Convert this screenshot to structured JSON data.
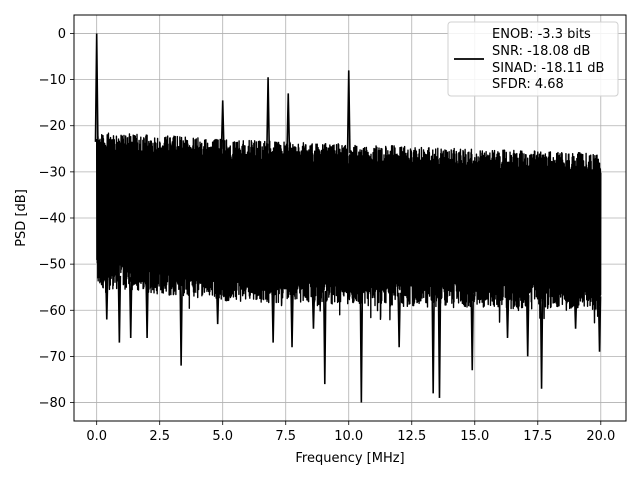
{
  "chart_data": {
    "type": "line",
    "title": "",
    "xlabel": "Frequency [MHz]",
    "ylabel": "PSD [dB]",
    "xlim": [
      -0.9,
      21.0
    ],
    "ylim": [
      -84.0,
      4.0
    ],
    "xticks": [
      0.0,
      2.5,
      5.0,
      7.5,
      10.0,
      12.5,
      15.0,
      17.5,
      20.0
    ],
    "xtick_labels": [
      "0.0",
      "2.5",
      "5.0",
      "7.5",
      "10.0",
      "12.5",
      "15.0",
      "17.5",
      "20.0"
    ],
    "yticks": [
      0,
      -10,
      -20,
      -30,
      -40,
      -50,
      -60,
      -70,
      -80
    ],
    "ytick_labels": [
      "0",
      "−10",
      "−20",
      "−30",
      "−40",
      "−50",
      "−60",
      "−70",
      "−80"
    ],
    "grid": true,
    "legend": {
      "placement": "top-right",
      "lines": [
        "ENOB: -3.3 bits",
        "SNR: -18.08 dB",
        "SINAD: -18.11 dB",
        "SFDR: 4.68"
      ]
    },
    "series": [
      {
        "color": "#000000",
        "noise_floor_upper_db": [
          {
            "x": 0.0,
            "y": -21.5
          },
          {
            "x": 2.5,
            "y": -22.0
          },
          {
            "x": 5.0,
            "y": -23.0
          },
          {
            "x": 7.5,
            "y": -23.5
          },
          {
            "x": 10.0,
            "y": -24.0
          },
          {
            "x": 12.5,
            "y": -24.5
          },
          {
            "x": 15.0,
            "y": -25.0
          },
          {
            "x": 17.5,
            "y": -25.5
          },
          {
            "x": 20.0,
            "y": -26.0
          }
        ],
        "noise_floor_lower_db": [
          {
            "x": 0.0,
            "y": -52.0
          },
          {
            "x": 5.0,
            "y": -55.0
          },
          {
            "x": 10.0,
            "y": -56.0
          },
          {
            "x": 15.0,
            "y": -56.5
          },
          {
            "x": 20.0,
            "y": -57.0
          }
        ],
        "peaks": [
          {
            "x": 0.0,
            "y": 0.0
          },
          {
            "x": 5.0,
            "y": -14.5
          },
          {
            "x": 6.8,
            "y": -9.5
          },
          {
            "x": 7.6,
            "y": -13.0
          },
          {
            "x": 10.0,
            "y": -8.0
          }
        ],
        "dips": [
          {
            "x": 0.4,
            "y": -62.0
          },
          {
            "x": 0.9,
            "y": -67.0
          },
          {
            "x": 1.35,
            "y": -66.0
          },
          {
            "x": 2.0,
            "y": -66.0
          },
          {
            "x": 3.35,
            "y": -72.0
          },
          {
            "x": 4.8,
            "y": -63.0
          },
          {
            "x": 7.0,
            "y": -67.0
          },
          {
            "x": 7.75,
            "y": -68.0
          },
          {
            "x": 8.6,
            "y": -64.0
          },
          {
            "x": 9.05,
            "y": -76.0
          },
          {
            "x": 10.5,
            "y": -80.0
          },
          {
            "x": 12.0,
            "y": -68.0
          },
          {
            "x": 13.35,
            "y": -78.0
          },
          {
            "x": 13.6,
            "y": -79.0
          },
          {
            "x": 14.9,
            "y": -73.0
          },
          {
            "x": 16.3,
            "y": -66.0
          },
          {
            "x": 17.1,
            "y": -70.0
          },
          {
            "x": 17.65,
            "y": -77.0
          },
          {
            "x": 19.0,
            "y": -64.0
          },
          {
            "x": 19.95,
            "y": -69.0
          }
        ]
      }
    ]
  }
}
